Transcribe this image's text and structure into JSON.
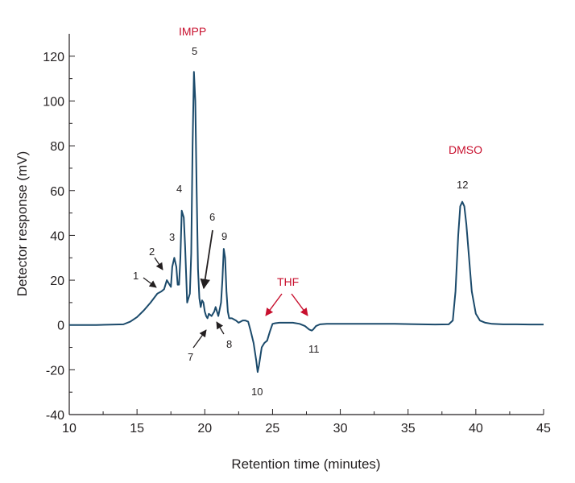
{
  "chart_data": {
    "type": "line",
    "title": "",
    "xlabel": "Retention time (minutes)",
    "ylabel": "Detector response (mV)",
    "xlim": [
      10,
      45
    ],
    "ylim": [
      -40,
      130
    ],
    "xticks": [
      "10",
      "15",
      "20",
      "25",
      "30",
      "35",
      "40",
      "45"
    ],
    "yticks": [
      "-40",
      "-20",
      "0",
      "20",
      "40",
      "60",
      "80",
      "100",
      "120"
    ],
    "grid": false,
    "series": [
      {
        "x": [
          10,
          12,
          14,
          14.5,
          15,
          15.5,
          16,
          16.5,
          16.8,
          17.0,
          17.2,
          17.4,
          17.5,
          17.6,
          17.75,
          17.9,
          18.0,
          18.1,
          18.2,
          18.3,
          18.45,
          18.55,
          18.7,
          18.9,
          19.0,
          19.1,
          19.2,
          19.3,
          19.4,
          19.5,
          19.6,
          19.7,
          19.8,
          19.9,
          20.0,
          20.1,
          20.2,
          20.3,
          20.5,
          20.7,
          20.8,
          20.9,
          21.0,
          21.2,
          21.3,
          21.4,
          21.5,
          21.6,
          21.7,
          21.8,
          22.0,
          22.3,
          22.5,
          22.8,
          23.0,
          23.2,
          23.4,
          23.6,
          23.8,
          23.9,
          24.0,
          24.2,
          24.4,
          24.6,
          24.8,
          25.0,
          25.2,
          25.5,
          26,
          26.5,
          27.0,
          27.4,
          27.7,
          27.9,
          28.0,
          28.2,
          28.5,
          29,
          30,
          32,
          34,
          36,
          37,
          38,
          38.3,
          38.5,
          38.7,
          38.85,
          39.0,
          39.15,
          39.3,
          39.5,
          39.7,
          40.0,
          40.3,
          40.7,
          41.2,
          42,
          43,
          44,
          45
        ],
        "y": [
          0,
          0,
          0.3,
          1.5,
          3.5,
          6.5,
          10,
          14,
          15,
          16,
          20,
          18,
          17,
          26,
          30,
          26,
          18,
          18,
          30,
          51,
          48,
          35,
          10,
          14,
          32,
          80,
          113,
          100,
          60,
          25,
          12,
          8,
          11,
          10,
          6,
          4,
          3,
          5,
          4,
          6,
          8,
          6,
          4,
          10,
          20,
          34,
          30,
          15,
          6,
          3,
          3,
          2,
          1,
          2,
          2,
          1.5,
          -3,
          -8,
          -16,
          -21,
          -18,
          -10,
          -8,
          -7,
          -3,
          0.5,
          0.8,
          1,
          1,
          1,
          0.5,
          -0.5,
          -2,
          -2.5,
          -2,
          -0.5,
          0.3,
          0.5,
          0.5,
          0.5,
          0.5,
          0.3,
          0.2,
          0.3,
          2,
          15,
          40,
          53,
          55,
          53,
          45,
          30,
          15,
          5,
          2,
          1,
          0.5,
          0.3,
          0.3,
          0.2,
          0.2
        ]
      }
    ],
    "annotations": {
      "peaks": [
        "1",
        "2",
        "3",
        "4",
        "5",
        "6",
        "7",
        "8",
        "9",
        "10",
        "11",
        "12"
      ],
      "compounds": [
        "IMPP",
        "THF",
        "DMSO"
      ]
    }
  },
  "colors": {
    "trace": "#1b4a6b",
    "compound_labels": "#c8102e",
    "axis": "#231f20"
  }
}
